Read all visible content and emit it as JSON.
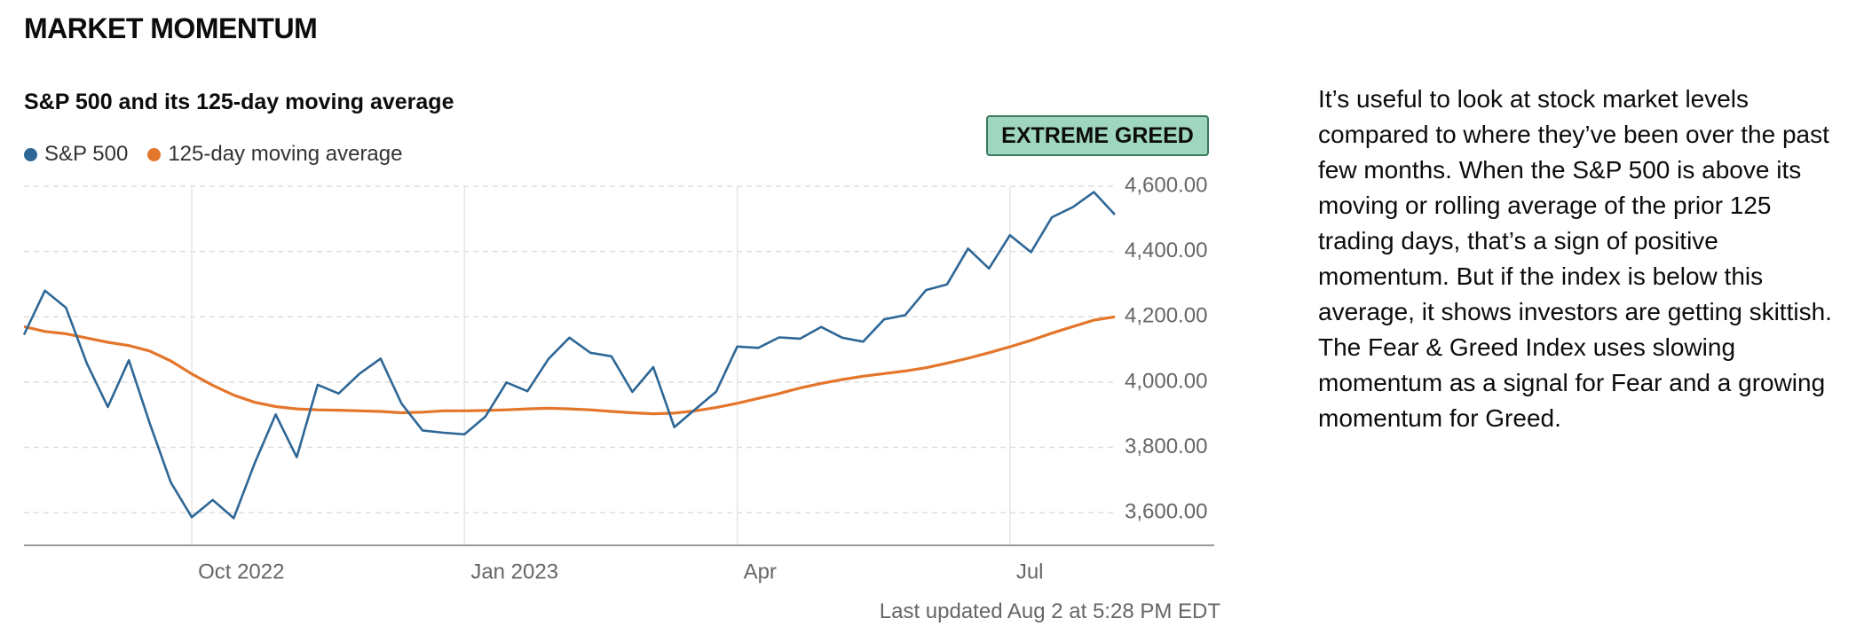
{
  "section_title": "MARKET MOMENTUM",
  "chart_data": {
    "type": "line",
    "title": "S&P 500 and its 125-day moving average",
    "badge": "EXTREME GREED",
    "categories": [
      null,
      null,
      null,
      null,
      null,
      null,
      null,
      null,
      "Oct 2022",
      null,
      null,
      null,
      null,
      null,
      null,
      null,
      null,
      null,
      null,
      null,
      null,
      "Jan 2023",
      null,
      null,
      null,
      null,
      null,
      null,
      null,
      null,
      null,
      null,
      null,
      null,
      "Apr",
      null,
      null,
      null,
      null,
      null,
      null,
      null,
      null,
      null,
      null,
      null,
      null,
      "Jul",
      null,
      null,
      null,
      null,
      null
    ],
    "series": [
      {
        "name": "S&P 500",
        "color": "#2e6796",
        "values": [
          4145,
          4280,
          4228,
          4057,
          3924,
          4067,
          3873,
          3693,
          3586,
          3639,
          3583,
          3752,
          3901,
          3770,
          3992,
          3965,
          4026,
          4072,
          3934,
          3852,
          3845,
          3840,
          3895,
          3999,
          3972,
          4071,
          4136,
          4090,
          4079,
          3970,
          4046,
          3862,
          3917,
          3971,
          4109,
          4105,
          4137,
          4133,
          4169,
          4136,
          4124,
          4192,
          4205,
          4282,
          4299,
          4409,
          4348,
          4450,
          4398,
          4505,
          4536,
          4582,
          4513
        ]
      },
      {
        "name": "125-day moving average",
        "color": "#e4762b",
        "values": [
          4170,
          4155,
          4148,
          4135,
          4122,
          4112,
          4095,
          4065,
          4025,
          3990,
          3960,
          3938,
          3925,
          3918,
          3915,
          3914,
          3912,
          3910,
          3906,
          3908,
          3912,
          3912,
          3913,
          3915,
          3918,
          3920,
          3918,
          3915,
          3910,
          3906,
          3903,
          3905,
          3912,
          3922,
          3935,
          3950,
          3965,
          3982,
          3996,
          4008,
          4018,
          4026,
          4034,
          4044,
          4058,
          4073,
          4090,
          4108,
          4128,
          4150,
          4170,
          4190,
          4200
        ]
      }
    ],
    "ylim": [
      3500,
      4600
    ],
    "yticks": [
      {
        "value": 3600,
        "label": "3,600.00"
      },
      {
        "value": 3800,
        "label": "3,800.00"
      },
      {
        "value": 4000,
        "label": "4,000.00"
      },
      {
        "value": 4200,
        "label": "4,200.00"
      },
      {
        "value": 4400,
        "label": "4,400.00"
      },
      {
        "value": 4600,
        "label": "4,600.00"
      }
    ],
    "grid": true,
    "footnote": "Last updated Aug 2 at 5:28 PM EDT"
  },
  "description": "It’s useful to look at stock market levels compared to where they’ve been over the past few months. When the S&P 500 is above its moving or rolling average of the prior 125 trading days, that’s a sign of positive momentum. But if the index is below this average, it shows investors are getting skittish. The Fear & Greed Index uses slowing momentum as a signal for Fear and a growing momentum for Greed."
}
